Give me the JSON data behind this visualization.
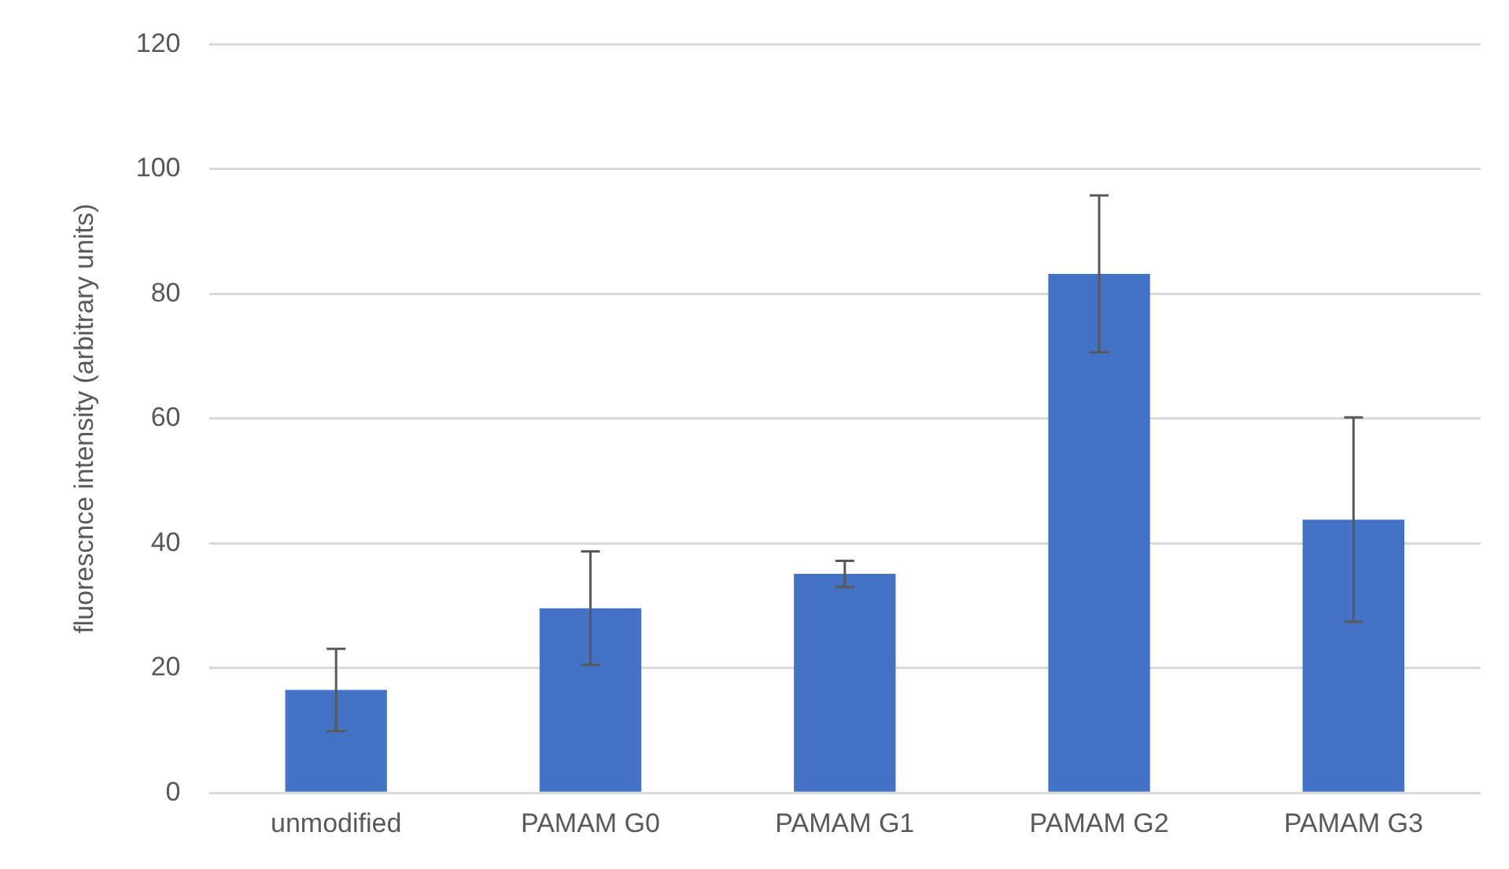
{
  "chart_data": {
    "type": "bar",
    "ylabel": "fluorescnce intensity (arbitrary units)",
    "categories": [
      "unmodified",
      "PAMAM G0",
      "PAMAM G1",
      "PAMAM G2",
      "PAMAM G3"
    ],
    "values": [
      16.5,
      29.6,
      35.1,
      83.2,
      43.8
    ],
    "errors": [
      6.6,
      9.1,
      2.1,
      12.6,
      16.4
    ],
    "color": "#4472c4",
    "ylim": [
      0,
      120
    ],
    "yticks": [
      0,
      20,
      40,
      60,
      80,
      100,
      120
    ],
    "grid": "y"
  }
}
